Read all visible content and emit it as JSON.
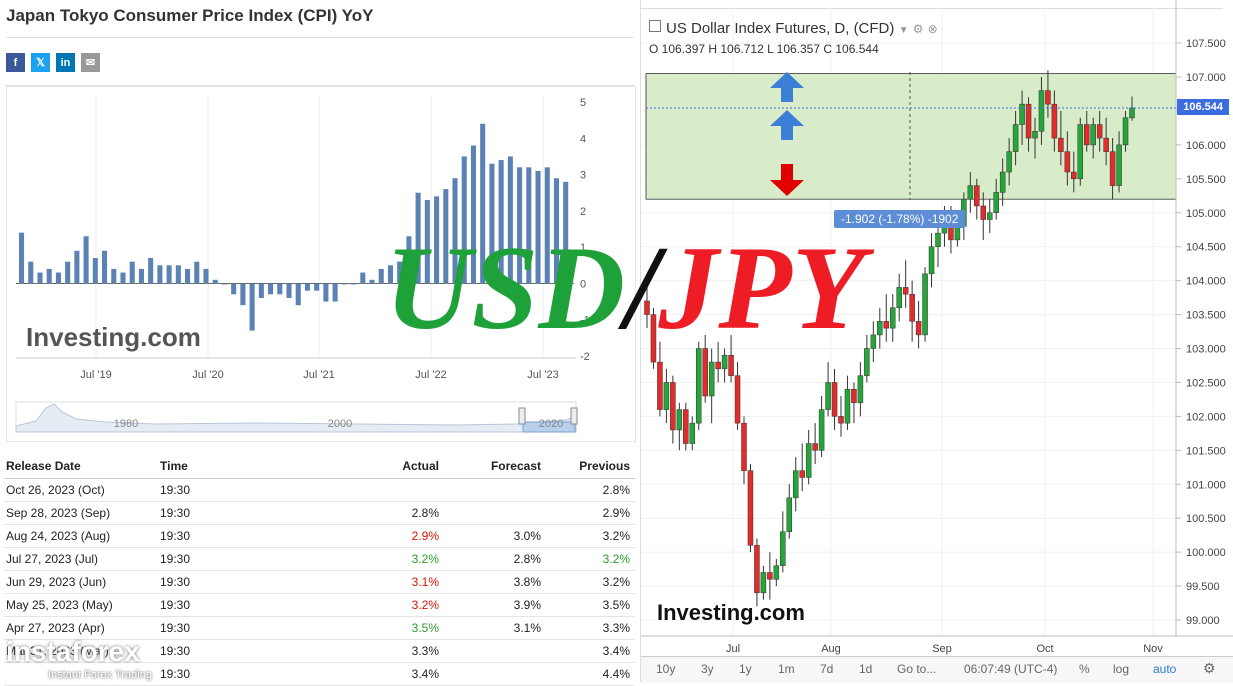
{
  "left": {
    "title": "Japan Tokyo Consumer Price Index (CPI) YoY",
    "share_icons": [
      "facebook-icon",
      "x-icon",
      "linkedin-icon",
      "mail-icon"
    ],
    "logo": "Investing.com",
    "table": {
      "headers": [
        "Release Date",
        "Time",
        "Actual",
        "Forecast",
        "Previous"
      ],
      "rows": [
        {
          "date": "Oct 26, 2023 (Oct)",
          "time": "19:30",
          "actual": "",
          "forecast": "",
          "previous": "2.8%",
          "actual_color": "",
          "previous_color": ""
        },
        {
          "date": "Sep 28, 2023 (Sep)",
          "time": "19:30",
          "actual": "2.8%",
          "forecast": "",
          "previous": "2.9%",
          "actual_color": "",
          "previous_color": ""
        },
        {
          "date": "Aug 24, 2023 (Aug)",
          "time": "19:30",
          "actual": "2.9%",
          "forecast": "3.0%",
          "previous": "3.2%",
          "actual_color": "red",
          "previous_color": ""
        },
        {
          "date": "Jul 27, 2023 (Jul)",
          "time": "19:30",
          "actual": "3.2%",
          "forecast": "2.8%",
          "previous": "3.2%",
          "actual_color": "green",
          "previous_color": "green"
        },
        {
          "date": "Jun 29, 2023 (Jun)",
          "time": "19:30",
          "actual": "3.1%",
          "forecast": "3.8%",
          "previous": "3.2%",
          "actual_color": "red",
          "previous_color": ""
        },
        {
          "date": "May 25, 2023 (May)",
          "time": "19:30",
          "actual": "3.2%",
          "forecast": "3.9%",
          "previous": "3.5%",
          "actual_color": "red",
          "previous_color": ""
        },
        {
          "date": "Apr 27, 2023 (Apr)",
          "time": "19:30",
          "actual": "3.5%",
          "forecast": "3.1%",
          "previous": "3.3%",
          "actual_color": "green",
          "previous_color": ""
        },
        {
          "date": "Mar 31, 2023 (Mar)",
          "time": "19:30",
          "actual": "3.3%",
          "forecast": "",
          "previous": "3.4%",
          "actual_color": "",
          "previous_color": ""
        },
        {
          "date": "",
          "time": "19:30",
          "actual": "3.4%",
          "forecast": "",
          "previous": "4.4%",
          "actual_color": "",
          "previous_color": ""
        }
      ]
    }
  },
  "right": {
    "chart_title": "US Dollar Index Futures, D, (CFD)",
    "ohlc": "O 106.397  H 106.712  L 106.357  C 106.544",
    "price_tag": "106.544",
    "measure_label": "-1.902 (-1.78%) -1902",
    "logo": "Investing.com",
    "toolbar": {
      "ranges": [
        "10y",
        "3y",
        "1y",
        "1m",
        "7d",
        "1d",
        "Go to..."
      ],
      "time": "06:07:49 (UTC-4)",
      "pct": "%",
      "log": "log",
      "auto": "auto"
    },
    "colors": {
      "up": "#26a63a",
      "down": "#e22b2b",
      "zone": "#d9ecc9",
      "arrow_up": "#3b7fd6",
      "arrow_down": "#e00000"
    }
  },
  "watermark": {
    "usd": "USD",
    "slash": "/",
    "jpy": "JPY"
  },
  "brand": {
    "name": "instaforex",
    "tagline": "Instant Forex Trading"
  },
  "chart_data": [
    {
      "type": "bar",
      "title": "Japan Tokyo Consumer Price Index (CPI) YoY",
      "x_tick_labels": [
        "Jul '19",
        "Jul '20",
        "Jul '21",
        "Jul '22",
        "Jul '23"
      ],
      "y_tick_labels": [
        "5",
        "4",
        "3",
        "2",
        "1",
        "0",
        "-1",
        "-2"
      ],
      "ylim": [
        -2,
        5
      ],
      "navigator_labels": [
        "1980",
        "2000",
        "2020"
      ],
      "values": [
        1.4,
        0.6,
        0.3,
        0.4,
        0.3,
        0.6,
        0.9,
        1.3,
        0.7,
        0.9,
        0.4,
        0.3,
        0.6,
        0.4,
        0.7,
        0.5,
        0.5,
        0.5,
        0.4,
        0.6,
        0.4,
        0.1,
        0.0,
        -0.3,
        -0.6,
        -1.3,
        -0.4,
        -0.3,
        -0.3,
        -0.4,
        -0.6,
        -0.2,
        -0.2,
        -0.5,
        -0.5,
        0.0,
        0.0,
        0.3,
        0.1,
        0.4,
        0.5,
        0.6,
        1.3,
        2.5,
        2.3,
        2.4,
        2.6,
        2.9,
        3.5,
        3.8,
        4.4,
        3.3,
        3.4,
        3.5,
        3.2,
        3.2,
        3.1,
        3.2,
        2.9,
        2.8
      ]
    },
    {
      "type": "candlestick",
      "title": "US Dollar Index Futures, D, (CFD)",
      "x_tick_labels": [
        "Jul",
        "Aug",
        "Sep",
        "Oct",
        "Nov"
      ],
      "y_tick_labels": [
        "107.500",
        "107.000",
        "106.500",
        "106.000",
        "105.500",
        "105.000",
        "104.500",
        "104.000",
        "103.500",
        "103.000",
        "102.500",
        "102.000",
        "101.500",
        "101.000",
        "100.500",
        "100.000",
        "99.500",
        "99.000"
      ],
      "ylim": [
        98.8,
        108.0
      ],
      "zone": [
        105.2,
        107.05
      ],
      "ohlc": [
        [
          103.7,
          104.1,
          103.3,
          103.5
        ],
        [
          103.5,
          103.6,
          102.7,
          102.8
        ],
        [
          102.8,
          103.1,
          102.0,
          102.1
        ],
        [
          102.1,
          102.7,
          101.9,
          102.5
        ],
        [
          102.5,
          102.6,
          101.6,
          101.8
        ],
        [
          101.8,
          102.2,
          101.5,
          102.1
        ],
        [
          102.1,
          102.2,
          101.5,
          101.6
        ],
        [
          101.6,
          102.0,
          101.5,
          101.9
        ],
        [
          101.9,
          103.1,
          101.8,
          103.0
        ],
        [
          103.0,
          103.2,
          102.2,
          102.3
        ],
        [
          102.3,
          103.0,
          101.9,
          102.8
        ],
        [
          102.8,
          103.1,
          102.5,
          102.7
        ],
        [
          102.7,
          103.0,
          102.5,
          102.9
        ],
        [
          102.9,
          103.2,
          102.5,
          102.6
        ],
        [
          102.6,
          102.8,
          101.8,
          101.9
        ],
        [
          101.9,
          102.0,
          101.0,
          101.2
        ],
        [
          101.2,
          101.3,
          100.0,
          100.1
        ],
        [
          100.1,
          100.2,
          99.2,
          99.4
        ],
        [
          99.4,
          99.8,
          99.3,
          99.7
        ],
        [
          99.7,
          100.0,
          99.3,
          99.6
        ],
        [
          99.6,
          99.9,
          99.5,
          99.8
        ],
        [
          99.8,
          100.6,
          99.7,
          100.3
        ],
        [
          100.3,
          101.0,
          100.2,
          100.8
        ],
        [
          100.8,
          101.4,
          100.6,
          101.2
        ],
        [
          101.2,
          101.6,
          100.9,
          101.1
        ],
        [
          101.1,
          101.8,
          101.0,
          101.6
        ],
        [
          101.6,
          101.9,
          101.3,
          101.5
        ],
        [
          101.5,
          102.3,
          101.4,
          102.1
        ],
        [
          102.1,
          102.8,
          102.0,
          102.5
        ],
        [
          102.5,
          102.7,
          101.8,
          102.0
        ],
        [
          102.0,
          102.3,
          101.7,
          101.9
        ],
        [
          101.9,
          102.6,
          101.8,
          102.4
        ],
        [
          102.4,
          102.5,
          101.9,
          102.2
        ],
        [
          102.2,
          102.8,
          102.0,
          102.6
        ],
        [
          102.6,
          103.2,
          102.5,
          103.0
        ],
        [
          103.0,
          103.4,
          102.8,
          103.2
        ],
        [
          103.2,
          103.6,
          103.0,
          103.4
        ],
        [
          103.4,
          103.8,
          103.1,
          103.3
        ],
        [
          103.3,
          103.8,
          103.1,
          103.6
        ],
        [
          103.6,
          104.1,
          103.4,
          103.9
        ],
        [
          103.9,
          104.3,
          103.6,
          103.8
        ],
        [
          103.8,
          104.0,
          103.1,
          103.4
        ],
        [
          103.4,
          103.7,
          103.0,
          103.2
        ],
        [
          103.2,
          104.2,
          103.1,
          104.1
        ],
        [
          104.1,
          104.7,
          103.9,
          104.5
        ],
        [
          104.5,
          104.9,
          104.2,
          104.7
        ],
        [
          104.7,
          105.1,
          104.5,
          104.9
        ],
        [
          104.9,
          105.1,
          104.4,
          104.6
        ],
        [
          104.6,
          105.0,
          104.5,
          104.8
        ],
        [
          104.8,
          105.3,
          104.6,
          105.2
        ],
        [
          105.2,
          105.6,
          105.0,
          105.4
        ],
        [
          105.4,
          105.5,
          104.9,
          105.1
        ],
        [
          105.1,
          105.3,
          104.6,
          104.9
        ],
        [
          104.9,
          105.2,
          104.7,
          105.0
        ],
        [
          105.0,
          105.5,
          104.9,
          105.3
        ],
        [
          105.3,
          105.8,
          105.1,
          105.6
        ],
        [
          105.6,
          106.1,
          105.4,
          105.9
        ],
        [
          105.9,
          106.5,
          105.7,
          106.3
        ],
        [
          106.3,
          106.8,
          106.0,
          106.6
        ],
        [
          106.6,
          106.7,
          105.9,
          106.1
        ],
        [
          106.1,
          106.4,
          105.8,
          106.2
        ],
        [
          106.2,
          107.0,
          106.0,
          106.8
        ],
        [
          106.8,
          107.1,
          106.4,
          106.6
        ],
        [
          106.6,
          106.8,
          105.9,
          106.1
        ],
        [
          106.1,
          106.5,
          105.7,
          105.9
        ],
        [
          105.9,
          106.2,
          105.4,
          105.6
        ],
        [
          105.6,
          105.9,
          105.3,
          105.5
        ],
        [
          105.5,
          106.4,
          105.4,
          106.3
        ],
        [
          106.3,
          106.5,
          105.9,
          106.0
        ],
        [
          106.0,
          106.4,
          105.8,
          106.3
        ],
        [
          106.3,
          106.5,
          105.9,
          106.1
        ],
        [
          106.1,
          106.4,
          105.7,
          105.9
        ],
        [
          105.9,
          106.1,
          105.2,
          105.4
        ],
        [
          105.4,
          106.2,
          105.3,
          106.0
        ],
        [
          106.0,
          106.5,
          105.9,
          106.4
        ],
        [
          106.397,
          106.712,
          106.357,
          106.544
        ]
      ],
      "last": 106.544
    }
  ]
}
